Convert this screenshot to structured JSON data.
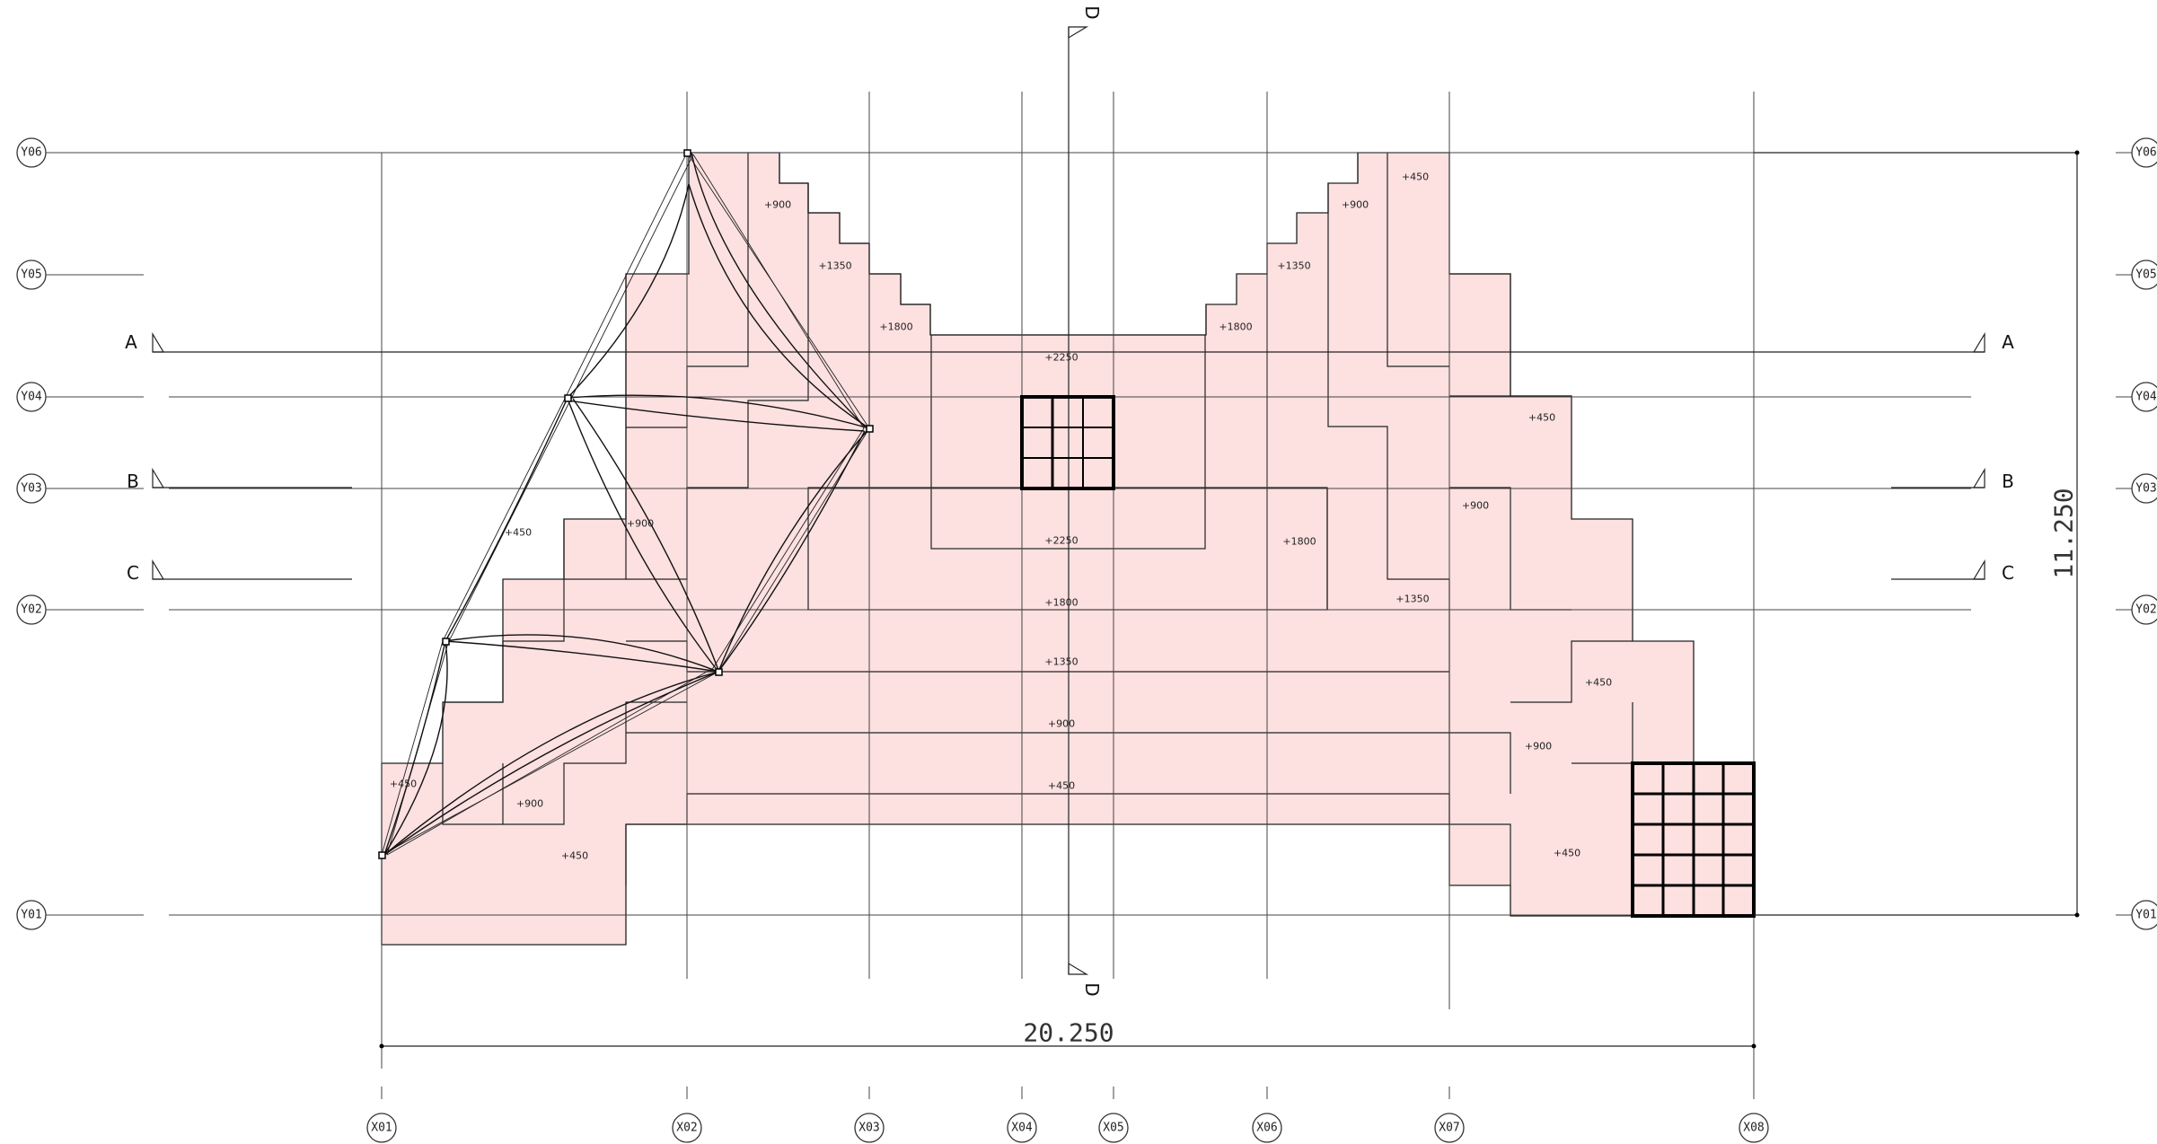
{
  "grid": {
    "x_axes": [
      "X01",
      "X02",
      "X03",
      "X04",
      "X05",
      "X06",
      "X07",
      "X08"
    ],
    "y_axes": [
      "Y06",
      "Y05",
      "Y04",
      "Y03",
      "Y02",
      "Y01"
    ]
  },
  "sections": {
    "a": "A",
    "b": "B",
    "c": "C",
    "d": "D"
  },
  "dimensions": {
    "width": "20.250",
    "height": "11.250"
  },
  "levels": {
    "l900_top_left": "+900",
    "l1350_top_left": "+1350",
    "l1800_top_left": "+1800",
    "l2250_top": "+2250",
    "l2250_bottom": "+2250",
    "l1800_center": "+1800",
    "l1350_center": "+1350",
    "l900_center": "+900",
    "l450_center": "+450",
    "l450_top_right": "+450",
    "l900_top_right": "+900",
    "l1350_top_right": "+1350",
    "l1800_top_right": "+1800",
    "l1800_right": "+1800",
    "l1350_right": "+1350",
    "l450_right_upper": "+450",
    "l900_right": "+900",
    "l450_right_mid": "+450",
    "l900_right_lower": "+900",
    "l450_right_bottom": "+450",
    "l450_left_upper": "+450",
    "l900_left_upper": "+900",
    "l450_left_lower": "+450",
    "l900_left_lower": "+900",
    "l450_left_bottom": "+450"
  }
}
